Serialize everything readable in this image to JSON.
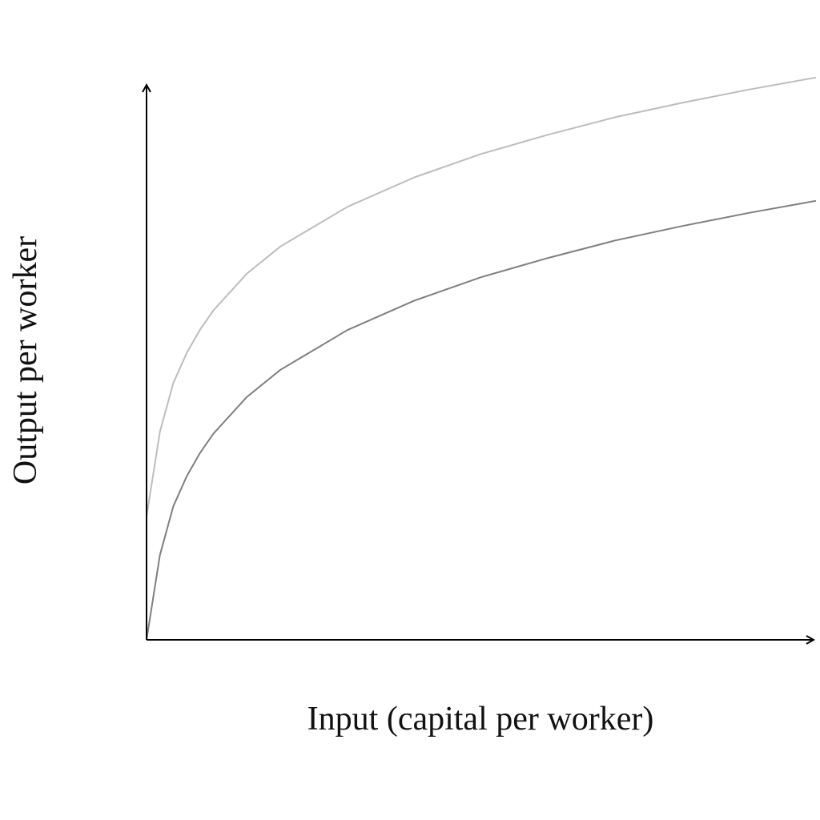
{
  "chart_data": {
    "type": "line",
    "title": "",
    "xlabel": "Input (capital per worker)",
    "ylabel": "Output per worker",
    "xlim": [
      0,
      1
    ],
    "ylim": [
      0,
      1
    ],
    "grid": false,
    "legend": "none",
    "axis_color": "#000000",
    "series": [
      {
        "color": "#bdbdbd",
        "x": [
          0,
          0.02,
          0.04,
          0.06,
          0.08,
          0.1,
          0.15,
          0.2,
          0.3,
          0.4,
          0.5,
          0.6,
          0.7,
          0.8,
          0.9,
          1.0
        ],
        "y": [
          0.205,
          0.346,
          0.427,
          0.477,
          0.516,
          0.548,
          0.609,
          0.654,
          0.72,
          0.769,
          0.808,
          0.84,
          0.869,
          0.893,
          0.915,
          0.935
        ]
      },
      {
        "color": "#7f7f7f",
        "x": [
          0,
          0.02,
          0.04,
          0.06,
          0.08,
          0.1,
          0.15,
          0.2,
          0.3,
          0.4,
          0.5,
          0.6,
          0.7,
          0.8,
          0.9,
          1.0
        ],
        "y": [
          0.0,
          0.141,
          0.222,
          0.272,
          0.311,
          0.343,
          0.404,
          0.449,
          0.515,
          0.564,
          0.603,
          0.635,
          0.664,
          0.688,
          0.71,
          0.73
        ]
      }
    ]
  }
}
